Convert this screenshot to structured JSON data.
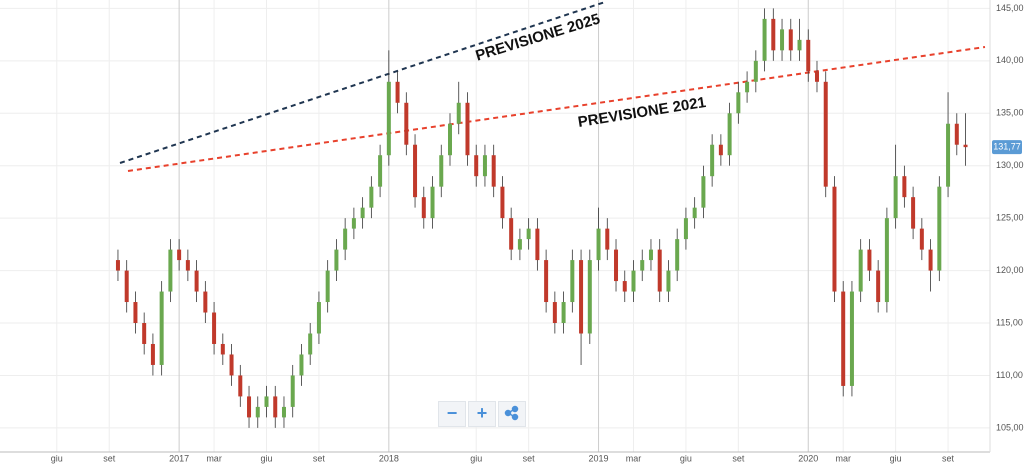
{
  "chart_data": {
    "type": "candlestick",
    "x": [
      8.5,
      9,
      9.5,
      10,
      10.5,
      11,
      11.5,
      12,
      12.5,
      13,
      13.5,
      14,
      14.5,
      15,
      15.5,
      16,
      16.5,
      17,
      17.5,
      18,
      18.5,
      19,
      19.5,
      20,
      20.5,
      21,
      21.5,
      22,
      22.5,
      23,
      23.5,
      24,
      24.5,
      25,
      25.5,
      26,
      26.5,
      27,
      27.5,
      28,
      28.5,
      29,
      29.5,
      30,
      30.5,
      31,
      31.5,
      32,
      32.5,
      33,
      33.5,
      34,
      34.5,
      35,
      35.5,
      36,
      36.5,
      37,
      37.5,
      38,
      38.5,
      39,
      39.5,
      40,
      40.5,
      41,
      41.5,
      42,
      42.5,
      43,
      43.5,
      44,
      44.5,
      45,
      45.5,
      46,
      46.5,
      47,
      47.5,
      48,
      48.5,
      49,
      49.5,
      50,
      50.5,
      51,
      51.5,
      52,
      52.5,
      53,
      53.5,
      54,
      54.5,
      55,
      55.5,
      56,
      56.5,
      57
    ],
    "open": [
      121,
      120,
      117,
      115,
      113,
      111,
      118,
      122,
      121,
      120,
      118,
      116,
      113,
      112,
      110,
      108,
      106,
      107,
      108,
      106,
      107,
      110,
      112,
      114,
      117,
      120,
      122,
      124,
      125,
      126,
      128,
      131,
      138,
      136,
      132,
      127,
      125,
      128,
      131,
      134,
      136,
      131,
      129,
      131,
      128,
      125,
      122,
      123,
      124,
      121,
      117,
      115,
      117,
      121,
      114,
      121,
      124,
      122,
      119,
      118,
      120,
      121,
      122,
      118,
      120,
      123,
      125,
      126,
      129,
      132,
      131,
      135,
      137,
      138,
      140,
      144,
      141,
      143,
      141,
      142,
      139,
      138,
      128,
      118,
      109,
      118,
      122,
      120,
      117,
      125,
      129,
      127,
      124,
      122,
      120,
      128,
      134,
      132
    ],
    "high": [
      122,
      121,
      118,
      116,
      114,
      119,
      123,
      123,
      122,
      121,
      119,
      117,
      114,
      113,
      111,
      109,
      108,
      109,
      109,
      108,
      111,
      113,
      115,
      118,
      121,
      123,
      125,
      126,
      127,
      129,
      132,
      141,
      139,
      137,
      133,
      128,
      129,
      132,
      135,
      138,
      137,
      132,
      132,
      132,
      129,
      126,
      124,
      125,
      125,
      122,
      118,
      118,
      122,
      122,
      122,
      126,
      125,
      123,
      120,
      121,
      122,
      123,
      123,
      121,
      124,
      126,
      127,
      130,
      133,
      133,
      136,
      138,
      139,
      141,
      145,
      145,
      144,
      144,
      144,
      143,
      140,
      139,
      129,
      119,
      119,
      123,
      123,
      121,
      126,
      132,
      130,
      128,
      125,
      123,
      129,
      137,
      135,
      135
    ],
    "low": [
      119,
      116,
      114,
      112,
      110,
      110,
      117,
      120,
      119,
      117,
      115,
      112,
      111,
      109,
      107,
      105,
      105,
      106,
      105,
      105,
      106,
      109,
      111,
      113,
      116,
      119,
      121,
      123,
      124,
      125,
      127,
      130,
      135,
      131,
      126,
      124,
      124,
      127,
      130,
      133,
      130,
      128,
      128,
      127,
      124,
      121,
      121,
      122,
      120,
      116,
      114,
      114,
      116,
      111,
      113,
      120,
      121,
      118,
      117,
      117,
      119,
      120,
      117,
      117,
      119,
      122,
      124,
      125,
      128,
      130,
      130,
      134,
      136,
      137,
      139,
      140,
      140,
      140,
      140,
      138,
      137,
      127,
      117,
      108,
      108,
      117,
      119,
      116,
      116,
      124,
      126,
      123,
      121,
      118,
      119,
      127,
      131,
      130
    ],
    "close": [
      120,
      117,
      115,
      113,
      111,
      118,
      122,
      121,
      120,
      118,
      116,
      113,
      112,
      110,
      108,
      106,
      107,
      108,
      106,
      107,
      110,
      112,
      114,
      117,
      120,
      122,
      124,
      125,
      126,
      128,
      131,
      138,
      136,
      132,
      127,
      125,
      128,
      131,
      134,
      136,
      131,
      129,
      131,
      128,
      125,
      122,
      123,
      124,
      121,
      117,
      115,
      117,
      121,
      114,
      121,
      124,
      122,
      119,
      118,
      120,
      121,
      122,
      118,
      120,
      123,
      125,
      126,
      129,
      132,
      131,
      135,
      137,
      138,
      140,
      144,
      141,
      143,
      141,
      142,
      139,
      138,
      128,
      118,
      109,
      118,
      122,
      120,
      117,
      125,
      129,
      127,
      124,
      122,
      120,
      128,
      134,
      132,
      131.77
    ],
    "up_color": "#6aa84f",
    "down_color": "#c0392b",
    "xlim": [
      1.75,
      58.4
    ],
    "ylim": [
      102.7,
      145.8
    ],
    "xticks": [
      {
        "value": 5,
        "label": "giu"
      },
      {
        "value": 8,
        "label": "set"
      },
      {
        "value": 12,
        "label": "2017"
      },
      {
        "value": 14,
        "label": "mar"
      },
      {
        "value": 17,
        "label": "giu"
      },
      {
        "value": 20,
        "label": "set"
      },
      {
        "value": 24,
        "label": "2018"
      },
      {
        "value": 29,
        "label": "giu"
      },
      {
        "value": 32,
        "label": "set"
      },
      {
        "value": 36,
        "label": "2019"
      },
      {
        "value": 38,
        "label": "mar"
      },
      {
        "value": 41,
        "label": "giu"
      },
      {
        "value": 44,
        "label": "set"
      },
      {
        "value": 48,
        "label": "2020"
      },
      {
        "value": 50,
        "label": "mar"
      },
      {
        "value": 53,
        "label": "giu"
      },
      {
        "value": 56,
        "label": "set"
      }
    ],
    "yticks": [
      {
        "value": 105,
        "label": "105,00"
      },
      {
        "value": 110,
        "label": "110,00"
      },
      {
        "value": 115,
        "label": "115,00"
      },
      {
        "value": 120,
        "label": "120,00"
      },
      {
        "value": 125,
        "label": "125,00"
      },
      {
        "value": 130,
        "label": "130,00"
      },
      {
        "value": 135,
        "label": "135,00"
      },
      {
        "value": 140,
        "label": "140,00"
      },
      {
        "value": 145,
        "label": "145,00"
      }
    ],
    "last_price": {
      "value": 131.77,
      "label": "131,77"
    },
    "annotations": [
      "PREVISIONE 2025",
      "PREVISIONE 2021"
    ],
    "grid": true
  }
}
